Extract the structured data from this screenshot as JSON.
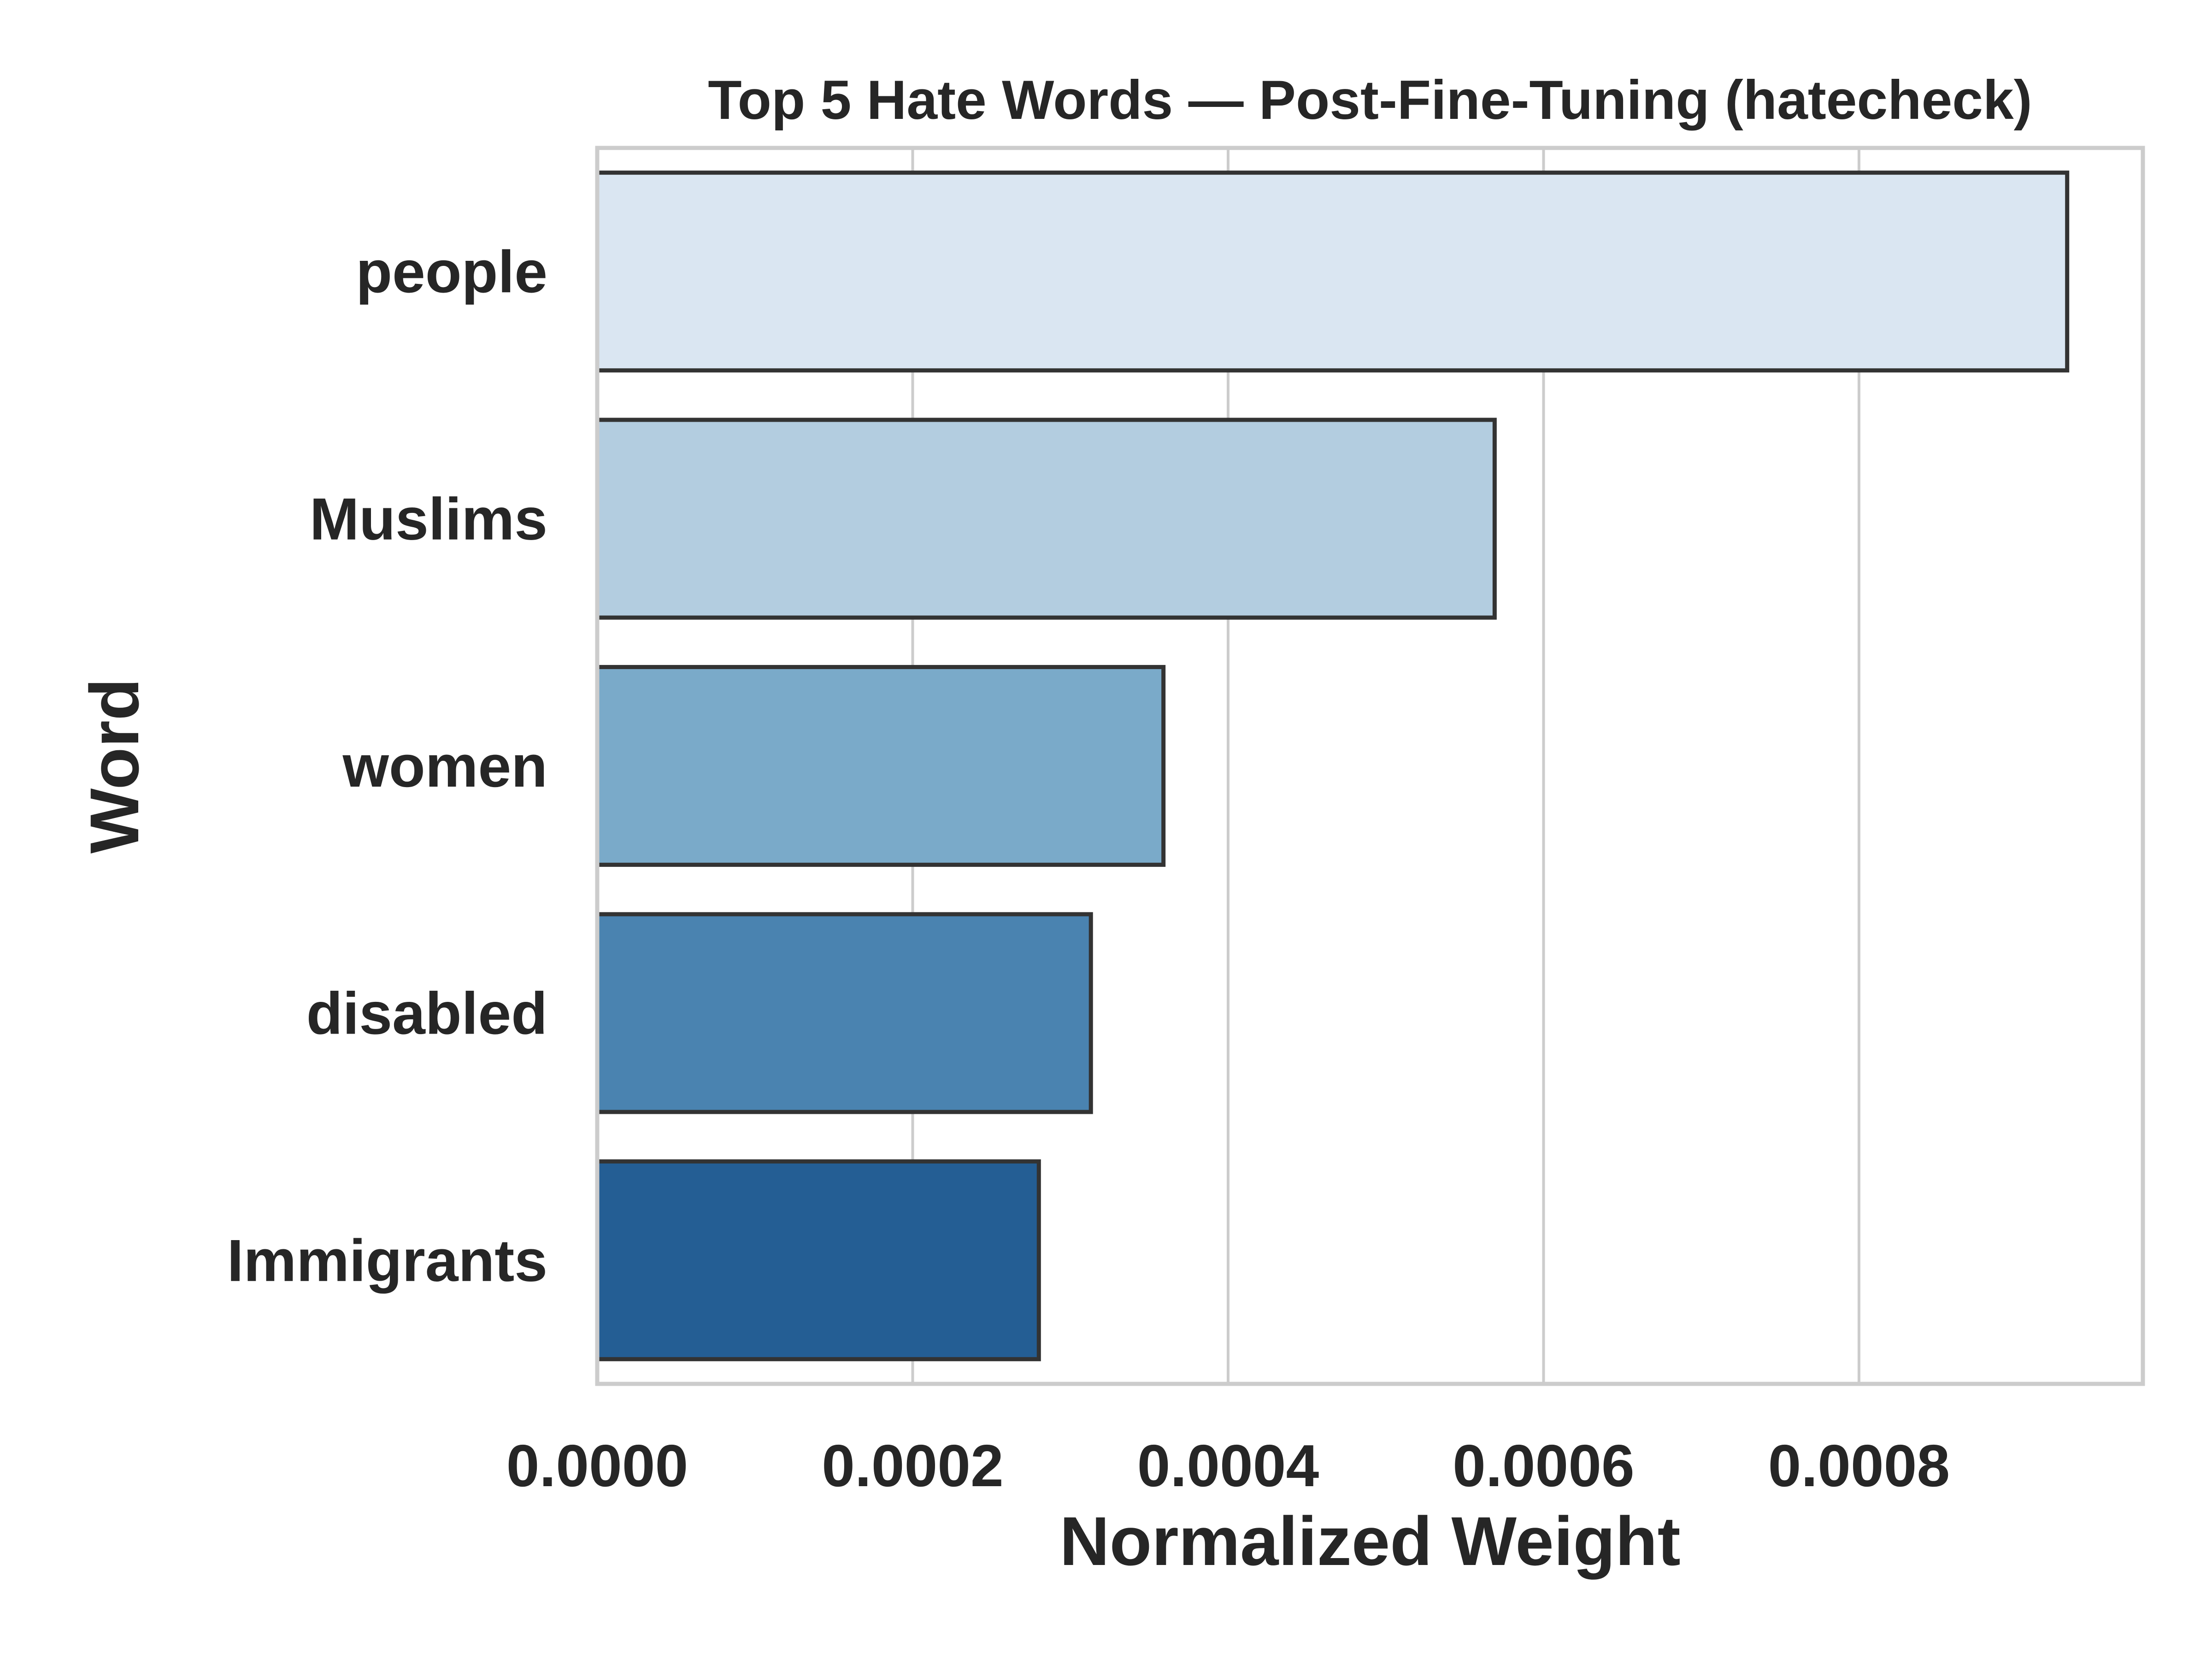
{
  "chart_data": {
    "type": "bar",
    "orientation": "horizontal",
    "title": "Top 5 Hate Words — Post-Fine-Tuning (hatecheck)",
    "xlabel": "Normalized Weight",
    "ylabel": "Word",
    "categories": [
      "people",
      "Muslims",
      "women",
      "disabled",
      "Immigrants"
    ],
    "values": [
      0.000932,
      0.000569,
      0.000359,
      0.000313,
      0.00028
    ],
    "xlim": [
      0,
      0.00098
    ],
    "xticks": [
      "0.0000",
      "0.0002",
      "0.0004",
      "0.0006",
      "0.0008"
    ],
    "xtick_values": [
      0,
      0.0002,
      0.0004,
      0.0006,
      0.0008
    ],
    "colors": [
      "#dae6f2",
      "#b3cde0",
      "#7aaac9",
      "#4a83b0",
      "#245e94"
    ],
    "bar_edge_color": "#333333",
    "grid": "vertical",
    "grid_color": "#cccccc",
    "frame_color": "#cccccc"
  }
}
